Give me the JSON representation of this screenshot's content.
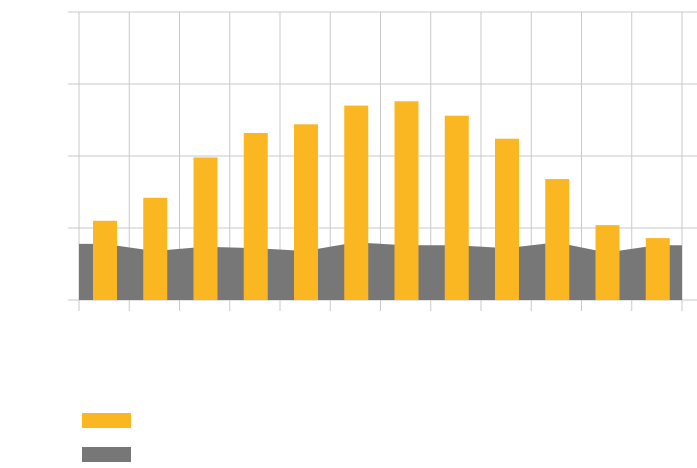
{
  "chart_data": {
    "type": "bar",
    "categories": [
      "",
      "",
      "",
      "",
      "",
      "",
      "",
      "",
      "",
      "",
      "",
      ""
    ],
    "series": [
      {
        "name": "",
        "kind": "bar",
        "color": "#FBB722",
        "values": [
          55,
          71,
          99,
          116,
          122,
          135,
          138,
          128,
          112,
          84,
          52,
          43
        ]
      },
      {
        "name": "",
        "kind": "area",
        "color": "#777777",
        "values": [
          39,
          34,
          37,
          36,
          34,
          40,
          38,
          38,
          36,
          40,
          33,
          38
        ]
      }
    ],
    "ylim": [
      0,
      200
    ],
    "yticks": [
      0,
      50,
      100,
      150,
      200
    ],
    "grid": true,
    "legend_position": "bottom-left",
    "title": "",
    "xlabel": "",
    "ylabel": ""
  }
}
